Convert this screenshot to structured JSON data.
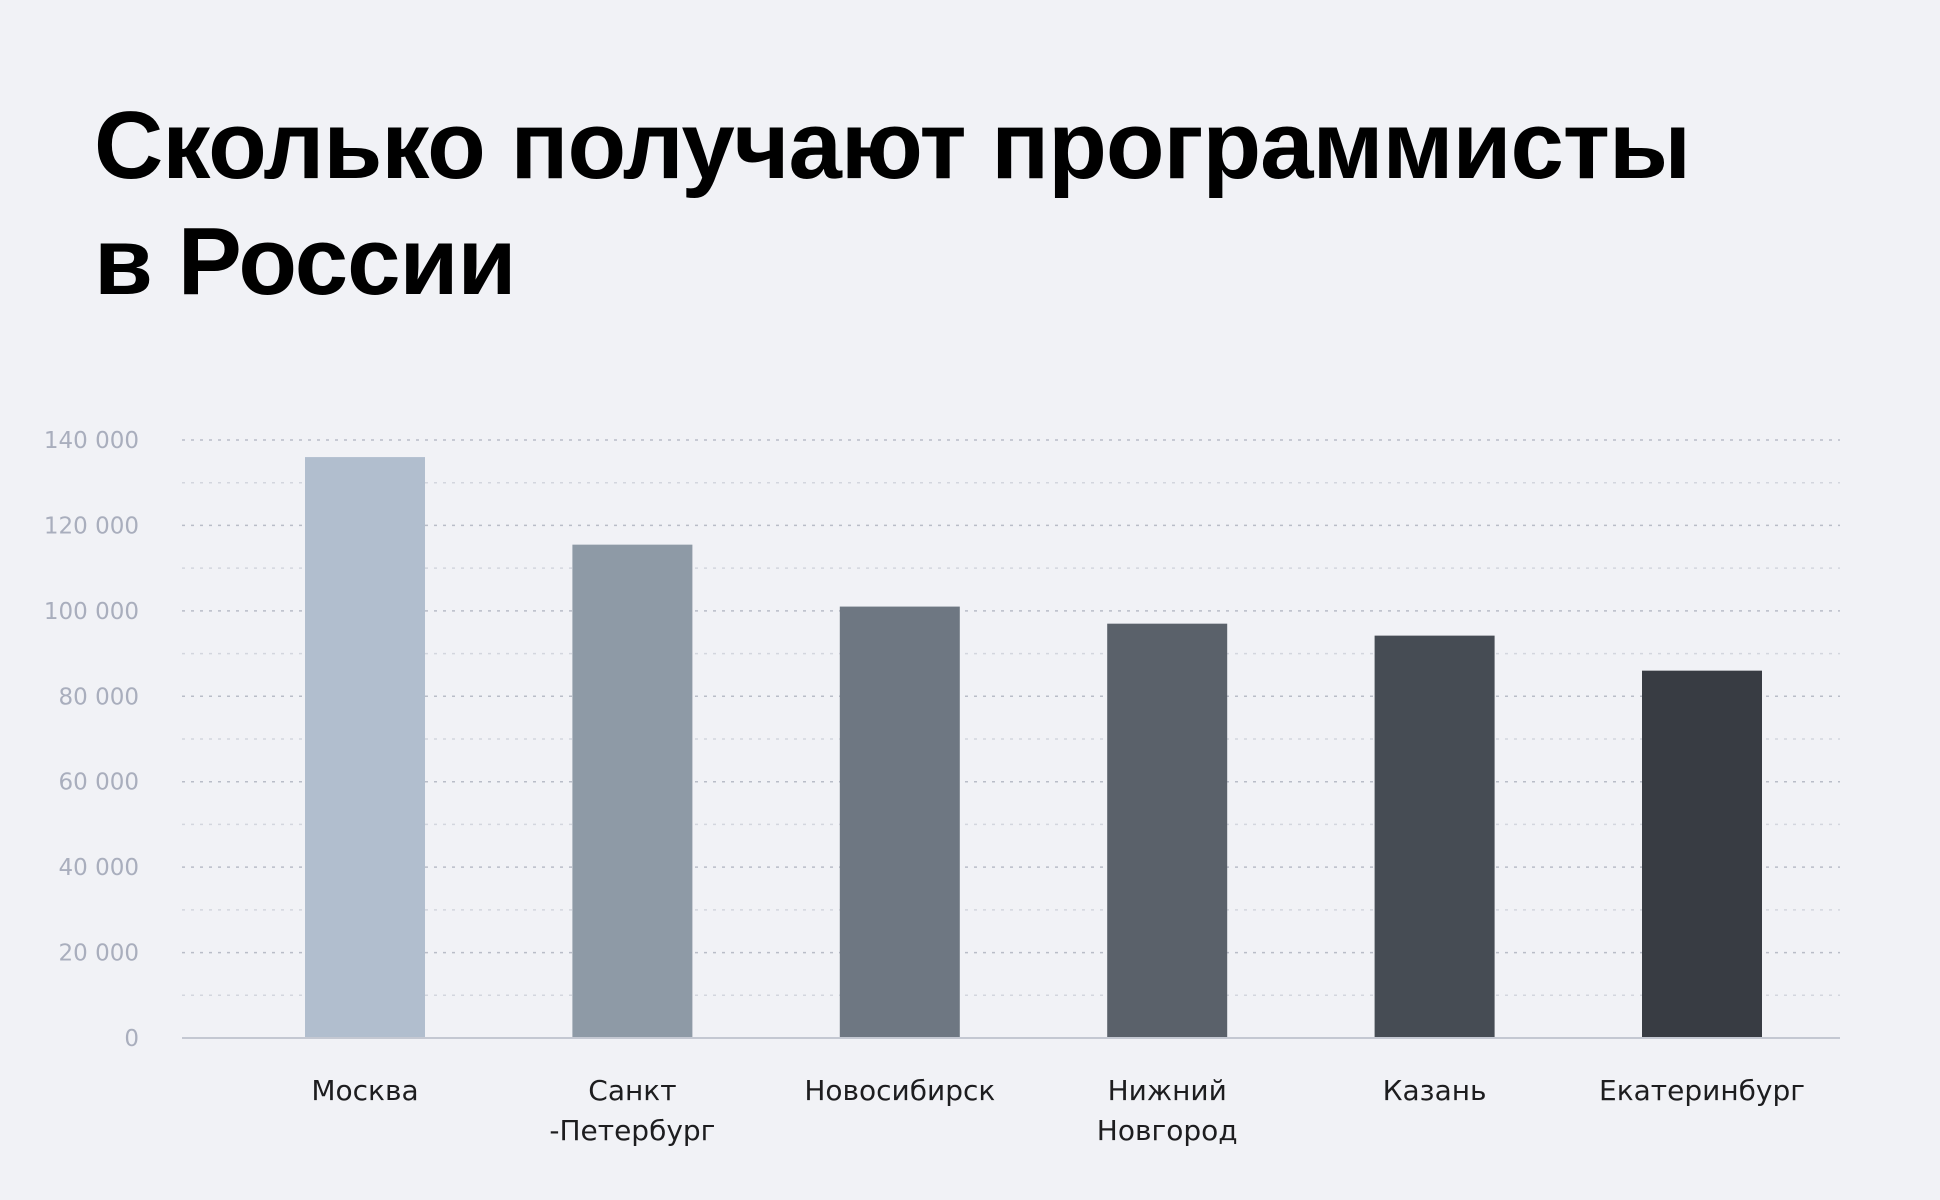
{
  "title_lines": [
    "Сколько получают программисты",
    "в России"
  ],
  "chart_data": {
    "type": "bar",
    "title": "Сколько получают программисты в России",
    "categories": [
      [
        "Москва"
      ],
      [
        "Санкт",
        "-Петербург"
      ],
      [
        "Новосибирск"
      ],
      [
        "Нижний",
        "Новгород"
      ],
      [
        "Казань"
      ],
      [
        "Екатеринбург"
      ]
    ],
    "values": [
      136000,
      115500,
      101000,
      97000,
      94200,
      86000
    ],
    "bar_colors": [
      "#b1bece",
      "#8e9aa6",
      "#6e7782",
      "#5a616a",
      "#464c54",
      "#383c43"
    ],
    "ylim": [
      0,
      140000
    ],
    "yticks": [
      0,
      20000,
      40000,
      60000,
      80000,
      100000,
      120000,
      140000
    ],
    "ytick_labels": [
      "0",
      "20 000",
      "40 000",
      "60 000",
      "80 000",
      "100 000",
      "120 000",
      "140 000"
    ],
    "xlabel": "",
    "ylabel": "",
    "grid": true
  }
}
